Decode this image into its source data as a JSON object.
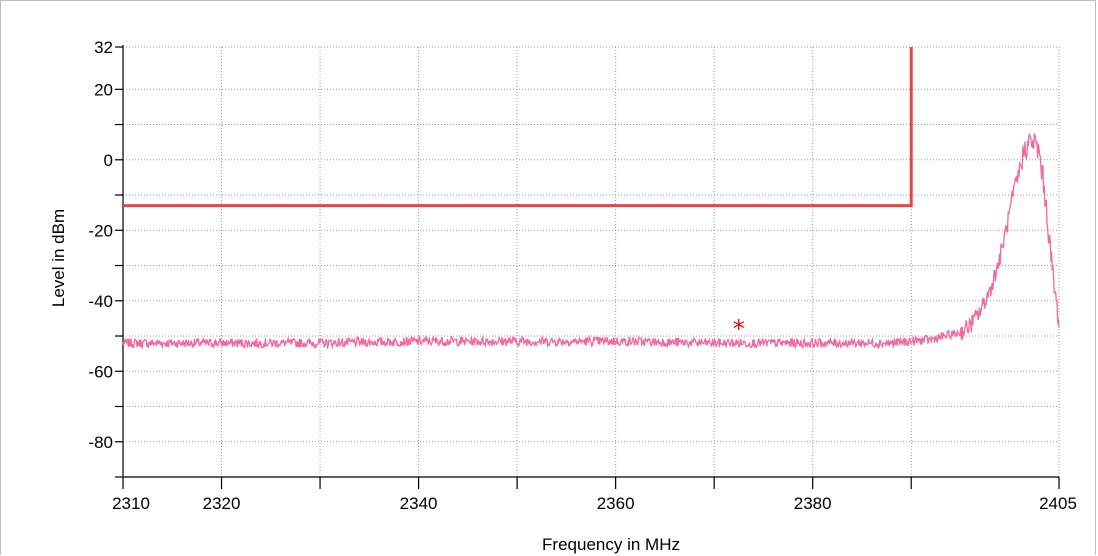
{
  "chart_data": {
    "type": "line",
    "title": "",
    "xlabel": "Frequency in MHz",
    "ylabel": "Level in dBm",
    "xlim": [
      2310,
      2405
    ],
    "ylim": [
      -90,
      32
    ],
    "grid": true,
    "x_ticks": [
      2310,
      2320,
      2340,
      2360,
      2380,
      2405
    ],
    "x_minor_ticks": [
      2330,
      2350,
      2370,
      2390
    ],
    "y_ticks": [
      32,
      20,
      0,
      -20,
      -40,
      -60,
      -80
    ],
    "y_minor_ticks": [
      10,
      -10,
      -30,
      -50,
      -70,
      -90
    ],
    "colors": {
      "limit_line": "#e8434b",
      "trace": "#f06a9b",
      "marker": "#ff0000",
      "grid": "#9a9a9a"
    },
    "series": [
      {
        "role": "limit-line",
        "x": [
          2310,
          2390,
          2390
        ],
        "y": [
          -13,
          -13,
          32
        ]
      },
      {
        "role": "spectrum-trace",
        "x": [
          2310,
          2320,
          2330,
          2340,
          2350,
          2360,
          2370,
          2380,
          2388,
          2392,
          2395,
          2396,
          2397,
          2398,
          2399,
          2400,
          2401,
          2401.5,
          2402,
          2402.5,
          2403,
          2403.5,
          2404,
          2404.5,
          2405
        ],
        "y": [
          -52,
          -52,
          -52,
          -51.5,
          -51.5,
          -51.5,
          -52,
          -52,
          -52,
          -51,
          -49,
          -47,
          -43,
          -37,
          -28,
          -15,
          -3,
          3,
          5,
          5,
          2,
          -8,
          -22,
          -36,
          -46
        ]
      }
    ],
    "marker": {
      "x": 2372.5,
      "y": -47.5,
      "symbol": "*"
    }
  }
}
